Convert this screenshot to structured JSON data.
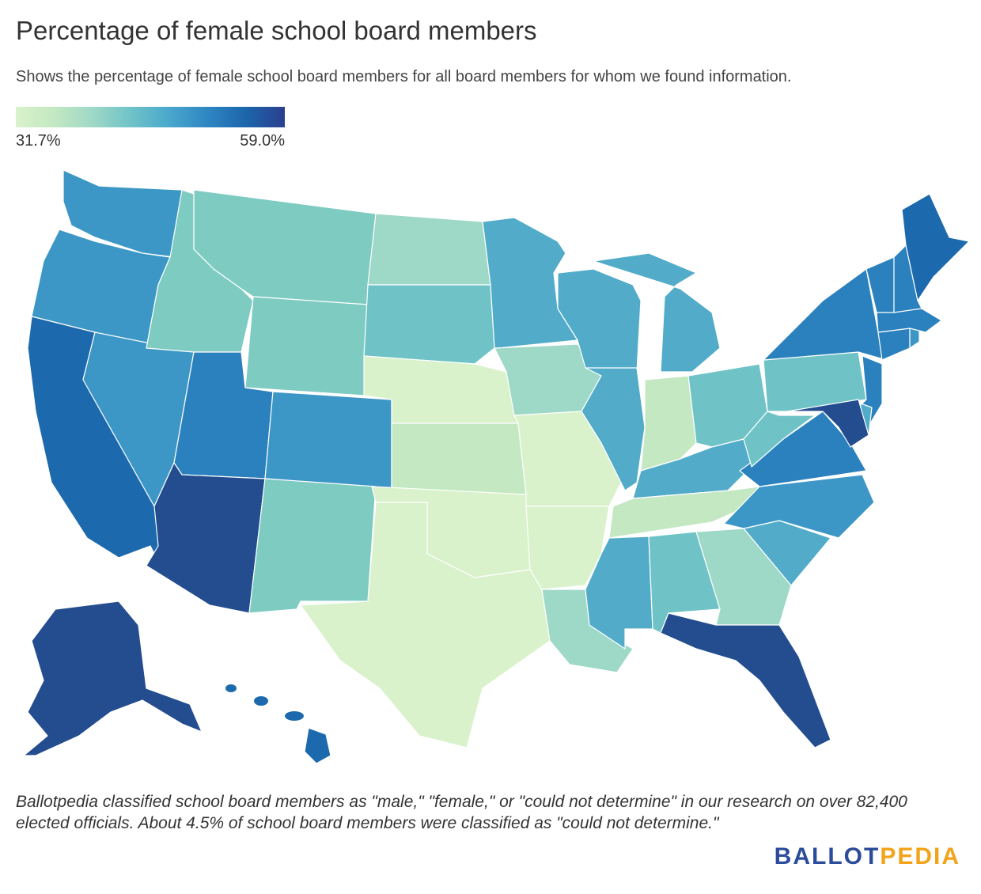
{
  "header": {
    "title": "Percentage of female school board members",
    "subtitle": "Shows the percentage of female school board members for all board members for whom we found information."
  },
  "legend": {
    "min_label": "31.7%",
    "max_label": "59.0%",
    "min": 31.7,
    "max": 59.0
  },
  "colors": {
    "c1": "#d9f2cb",
    "c2": "#c3e8c2",
    "c3": "#9ed8c7",
    "c4": "#7ecbc2",
    "c5": "#6fc3c7",
    "c6": "#52acc9",
    "c7": "#3d97c6",
    "c8": "#2b81be",
    "c9": "#1c6aad",
    "c10": "#234d8f"
  },
  "note": "Ballotpedia classified school board members as \"male,\" \"female,\" or \"could not determine\" in our research on over 82,400 elected officials. About 4.5% of school board members were classified as \"could not determine.\"",
  "logo": {
    "part1": "BALLOT",
    "part2": "PEDIA"
  },
  "states": {
    "WA": "c7",
    "OR": "c7",
    "CA": "c9",
    "NV": "c7",
    "ID": "c4",
    "MT": "c4",
    "WY": "c4",
    "UT": "c8",
    "AZ": "c10",
    "CO": "c7",
    "NM": "c4",
    "ND": "c3",
    "SD": "c5",
    "NE": "c1",
    "KS": "c2",
    "OK": "c1",
    "TX": "c1",
    "MN": "c6",
    "IA": "c3",
    "MO": "c1",
    "AR": "c1",
    "LA": "c3",
    "WI": "c6",
    "IL": "c6",
    "MI": "c6",
    "IN": "c2",
    "OH": "c5",
    "KY": "c6",
    "TN": "c2",
    "MS": "c6",
    "AL": "c5",
    "GA": "c3",
    "FL": "c10",
    "SC": "c6",
    "NC": "c7",
    "VA": "c8",
    "WV": "c5",
    "PA": "c5",
    "NY": "c8",
    "MD": "c10",
    "DE": "c6",
    "NJ": "c8",
    "CT": "c8",
    "RI": "c7",
    "MA": "c8",
    "VT": "c8",
    "NH": "c8",
    "ME": "c9",
    "AK": "c10",
    "HI": "c9"
  }
}
